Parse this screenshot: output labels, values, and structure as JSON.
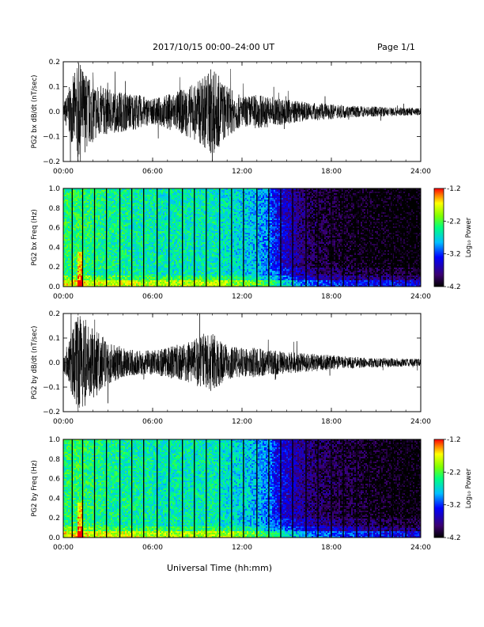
{
  "header": {
    "title": "2017/10/15  00:00–24:00 UT",
    "page": "Page 1/1"
  },
  "xaxis_title": "Universal Time (hh:mm)",
  "chart_data": [
    {
      "type": "line",
      "ylabel": "PG2 bx dB/dt (nT/sec)",
      "xlim": [
        0,
        24
      ],
      "ylim": [
        -0.2,
        0.2
      ],
      "xtick_labels": [
        "00:00",
        "06:00",
        "12:00",
        "18:00",
        "24:00"
      ],
      "ytick_labels": [
        "0.2",
        "0.1",
        "0.0",
        "−0.1",
        "−0.2"
      ],
      "series": [
        {
          "x": [
            0,
            1,
            2,
            3,
            4,
            5,
            6,
            7,
            8,
            9,
            10,
            11,
            12,
            13,
            14,
            15,
            16,
            17,
            18,
            19,
            20,
            21,
            22,
            23,
            24
          ],
          "amplitude": [
            0.03,
            0.2,
            0.12,
            0.09,
            0.08,
            0.07,
            0.05,
            0.07,
            0.09,
            0.12,
            0.18,
            0.1,
            0.06,
            0.07,
            0.06,
            0.05,
            0.04,
            0.035,
            0.03,
            0.025,
            0.022,
            0.02,
            0.018,
            0.016,
            0.015
          ]
        }
      ]
    },
    {
      "type": "heatmap",
      "ylabel": "PG2 bx Freq (Hz)",
      "xlim": [
        0,
        24
      ],
      "ylim": [
        0,
        1.0
      ],
      "xtick_labels": [
        "00:00",
        "06:00",
        "12:00",
        "18:00",
        "24:00"
      ],
      "ytick_labels": [
        "1.0",
        "0.8",
        "0.6",
        "0.4",
        "0.2",
        "0.0"
      ],
      "colorbar": {
        "label": "Log₁₀ Power",
        "range": [
          -4.2,
          -1.2
        ],
        "tick_labels": [
          "-1.2",
          "-2.2",
          "-3.2",
          "-4.2"
        ]
      },
      "intensity_profile": [
        0.6,
        0.62,
        0.6,
        0.58,
        0.57,
        0.56,
        0.55,
        0.54,
        0.55,
        0.54,
        0.55,
        0.52,
        0.5,
        0.45,
        0.38,
        0.28,
        0.18,
        0.12,
        0.1,
        0.08,
        0.07,
        0.06,
        0.05,
        0.04,
        0.03
      ],
      "gap_lines_hours": [
        0.6,
        1.3,
        2.1,
        2.9,
        3.8,
        4.6,
        5.4,
        6.3,
        7.1,
        8.0,
        8.8,
        9.6,
        10.5,
        11.3,
        12.1,
        13.0,
        13.8,
        14.6,
        15.4,
        16.3,
        17.1,
        18.0,
        18.8,
        19.7,
        20.5,
        21.3,
        22.1,
        23.0
      ]
    },
    {
      "type": "line",
      "ylabel": "PG2 by dB/dt (nT/sec)",
      "xlim": [
        0,
        24
      ],
      "ylim": [
        -0.2,
        0.2
      ],
      "xtick_labels": [
        "00:00",
        "06:00",
        "12:00",
        "18:00",
        "24:00"
      ],
      "ytick_labels": [
        "0.2",
        "0.1",
        "0.0",
        "−0.1",
        "−0.2"
      ],
      "series": [
        {
          "x": [
            0,
            1,
            2,
            3,
            4,
            5,
            6,
            7,
            8,
            9,
            10,
            11,
            12,
            13,
            14,
            15,
            16,
            17,
            18,
            19,
            20,
            21,
            22,
            23,
            24
          ],
          "amplitude": [
            0.03,
            0.2,
            0.15,
            0.09,
            0.06,
            0.05,
            0.05,
            0.06,
            0.08,
            0.1,
            0.12,
            0.07,
            0.06,
            0.06,
            0.05,
            0.045,
            0.04,
            0.035,
            0.03,
            0.025,
            0.022,
            0.02,
            0.018,
            0.016,
            0.015
          ]
        }
      ]
    },
    {
      "type": "heatmap",
      "ylabel": "PG2 by Freq (Hz)",
      "xlim": [
        0,
        24
      ],
      "ylim": [
        0,
        1.0
      ],
      "xtick_labels": [
        "00:00",
        "06:00",
        "12:00",
        "18:00",
        "24:00"
      ],
      "ytick_labels": [
        "1.0",
        "0.8",
        "0.6",
        "0.4",
        "0.2",
        "0.0"
      ],
      "colorbar": {
        "label": "Log₁₀ Power",
        "range": [
          -4.2,
          -1.2
        ],
        "tick_labels": [
          "-1.2",
          "-2.2",
          "-3.2",
          "-4.2"
        ]
      },
      "intensity_profile": [
        0.6,
        0.62,
        0.6,
        0.58,
        0.57,
        0.56,
        0.55,
        0.54,
        0.55,
        0.54,
        0.55,
        0.52,
        0.5,
        0.45,
        0.38,
        0.3,
        0.22,
        0.16,
        0.14,
        0.12,
        0.1,
        0.08,
        0.06,
        0.05,
        0.04
      ],
      "gap_lines_hours": [
        0.6,
        1.3,
        2.1,
        2.9,
        3.8,
        4.6,
        5.4,
        6.3,
        7.1,
        8.0,
        8.8,
        9.6,
        10.5,
        11.3,
        12.1,
        13.0,
        13.8,
        14.6,
        15.4,
        16.3,
        17.1,
        18.0,
        18.8,
        19.7,
        20.5,
        21.3,
        22.1,
        23.0
      ]
    }
  ]
}
